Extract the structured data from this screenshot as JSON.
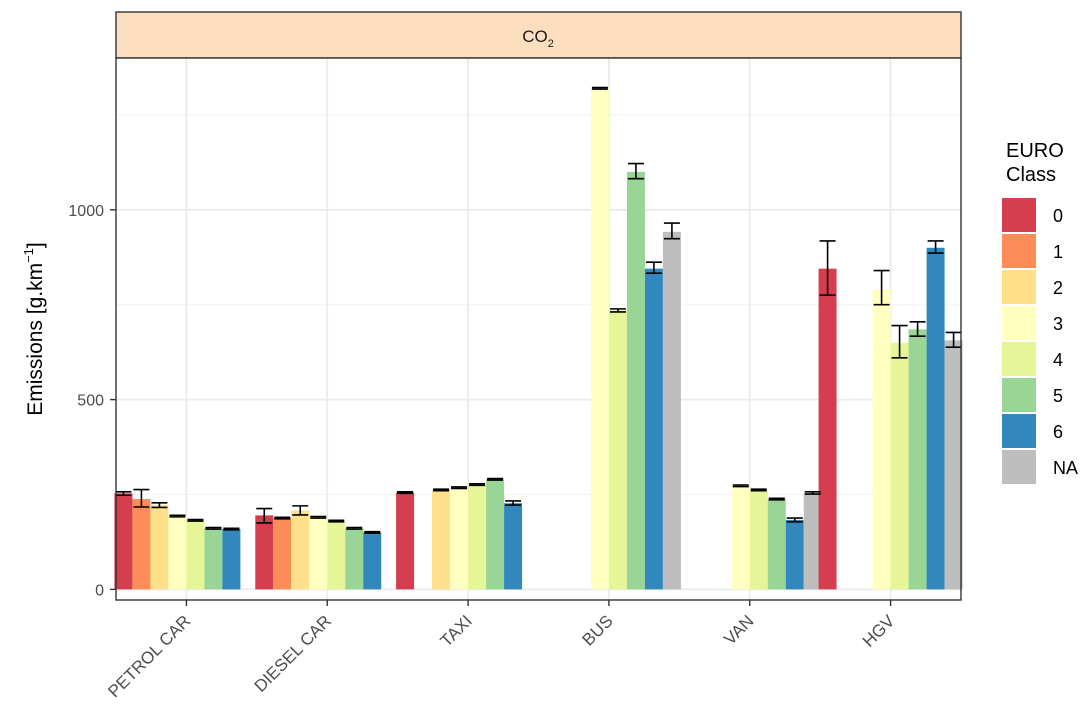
{
  "chart_data": {
    "type": "bar",
    "facet_label": "CO2",
    "facet_label_main": "CO",
    "facet_label_sub": "2",
    "ylabel_main": "Emissions [g.km",
    "ylabel_sup": "−1",
    "ylabel_close": "]",
    "ylim": [
      -28,
      1400
    ],
    "yticks": [
      0,
      500,
      1000
    ],
    "grid": true,
    "legend_position": "right",
    "legend_title_lines": [
      "EURO",
      "Class"
    ],
    "classes": [
      "0",
      "1",
      "2",
      "3",
      "4",
      "5",
      "6",
      "NA"
    ],
    "class_colors": {
      "0": "#D53E4F",
      "1": "#FC8D59",
      "2": "#FEE08B",
      "3": "#FFFFBF",
      "4": "#E6F598",
      "5": "#99D594",
      "6": "#3288BD",
      "NA": "#BEBEBE"
    },
    "categories": [
      "PETROL CAR",
      "DIESEL CAR",
      "TAXI",
      "BUS",
      "VAN",
      "HGV"
    ],
    "groups": [
      {
        "category": "PETROL CAR",
        "bars": [
          {
            "class": "0",
            "value": 253,
            "lo": 248,
            "hi": 257
          },
          {
            "class": "1",
            "value": 238,
            "lo": 217,
            "hi": 263
          },
          {
            "class": "2",
            "value": 222,
            "lo": 216,
            "hi": 228
          },
          {
            "class": "3",
            "value": 193,
            "lo": 191,
            "hi": 195
          },
          {
            "class": "4",
            "value": 182,
            "lo": 180,
            "hi": 184
          },
          {
            "class": "5",
            "value": 161,
            "lo": 159,
            "hi": 163
          },
          {
            "class": "6",
            "value": 159,
            "lo": 157,
            "hi": 161
          }
        ]
      },
      {
        "category": "DIESEL CAR",
        "bars": [
          {
            "class": "0",
            "value": 195,
            "lo": 175,
            "hi": 213
          },
          {
            "class": "1",
            "value": 188,
            "lo": 186,
            "hi": 190
          },
          {
            "class": "2",
            "value": 208,
            "lo": 196,
            "hi": 220
          },
          {
            "class": "3",
            "value": 190,
            "lo": 188,
            "hi": 192
          },
          {
            "class": "4",
            "value": 180,
            "lo": 178,
            "hi": 182
          },
          {
            "class": "5",
            "value": 161,
            "lo": 159,
            "hi": 163
          },
          {
            "class": "6",
            "value": 150,
            "lo": 148,
            "hi": 152
          }
        ]
      },
      {
        "category": "TAXI",
        "bars": [
          {
            "class": "0",
            "value": 255,
            "lo": 253,
            "hi": 257
          },
          {
            "class": "2",
            "value": 262,
            "lo": 260,
            "hi": 264
          },
          {
            "class": "3",
            "value": 268,
            "lo": 266,
            "hi": 270
          },
          {
            "class": "4",
            "value": 276,
            "lo": 274,
            "hi": 278
          },
          {
            "class": "5",
            "value": 290,
            "lo": 288,
            "hi": 292
          },
          {
            "class": "6",
            "value": 227,
            "lo": 222,
            "hi": 233
          }
        ]
      },
      {
        "category": "BUS",
        "bars": [
          {
            "class": "3",
            "value": 1320,
            "lo": 1318,
            "hi": 1322
          },
          {
            "class": "4",
            "value": 735,
            "lo": 731,
            "hi": 739
          },
          {
            "class": "5",
            "value": 1100,
            "lo": 1082,
            "hi": 1122
          },
          {
            "class": "6",
            "value": 845,
            "lo": 833,
            "hi": 862
          },
          {
            "class": "NA",
            "value": 942,
            "lo": 924,
            "hi": 965
          }
        ]
      },
      {
        "category": "VAN",
        "bars": [
          {
            "class": "3",
            "value": 273,
            "lo": 271,
            "hi": 275
          },
          {
            "class": "4",
            "value": 262,
            "lo": 260,
            "hi": 264
          },
          {
            "class": "5",
            "value": 238,
            "lo": 236,
            "hi": 240
          },
          {
            "class": "6",
            "value": 183,
            "lo": 178,
            "hi": 188
          },
          {
            "class": "NA",
            "value": 254,
            "lo": 251,
            "hi": 257
          }
        ]
      },
      {
        "category": "HGV",
        "bars": [
          {
            "class": "0",
            "value": 845,
            "lo": 775,
            "hi": 918
          },
          {
            "class": "3",
            "value": 790,
            "lo": 750,
            "hi": 840
          },
          {
            "class": "4",
            "value": 650,
            "lo": 610,
            "hi": 695
          },
          {
            "class": "5",
            "value": 685,
            "lo": 667,
            "hi": 705
          },
          {
            "class": "6",
            "value": 900,
            "lo": 886,
            "hi": 918
          },
          {
            "class": "NA",
            "value": 656,
            "lo": 638,
            "hi": 677
          }
        ]
      }
    ]
  }
}
